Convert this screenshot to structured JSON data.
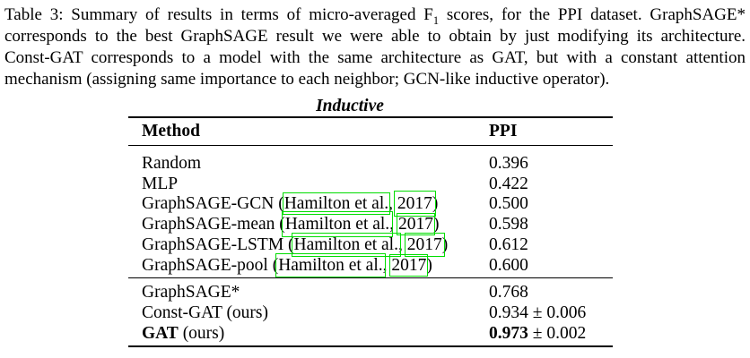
{
  "colors": {
    "citation_box": "#00dd00",
    "text": "#000000",
    "rule": "#000000"
  },
  "caption": {
    "lines": [
      {
        "pre": "Table 3: Summary of results in terms of micro-averaged F",
        "sub": "1",
        "post": " scores, for the PPI dataset. GraphSAGE*"
      },
      {
        "text": "corresponds to the best GraphSAGE result we were able to obtain by just modifying its architecture."
      },
      {
        "text": "Const-GAT corresponds to a model with the same architecture as GAT, but with a constant attention"
      },
      {
        "text": "mechanism (assigning same importance to each neighbor; GCN-like inductive operator)."
      }
    ]
  },
  "table": {
    "group_title": "Inductive",
    "columns": {
      "method": "Method",
      "ppi": "PPI"
    },
    "rows_top": [
      {
        "method": "Random",
        "value": "0.396"
      },
      {
        "method": "MLP",
        "value": "0.422"
      },
      {
        "prefix": "GraphSAGE-GCN (",
        "cite_name": "Hamilton et al.",
        "cite_sep": ", ",
        "cite_year": "2017",
        "suffix": ")",
        "value": "0.500"
      },
      {
        "prefix": "GraphSAGE-mean (",
        "cite_name": "Hamilton et al.",
        "cite_sep": ", ",
        "cite_year": "2017",
        "suffix": ")",
        "value": "0.598"
      },
      {
        "prefix": "GraphSAGE-LSTM (",
        "cite_name": "Hamilton et al.",
        "cite_sep": ", ",
        "cite_year": "2017",
        "suffix": ")",
        "value": "0.612"
      },
      {
        "prefix": "GraphSAGE-pool (",
        "cite_name": "Hamilton et al.",
        "cite_sep": ", ",
        "cite_year": "2017",
        "suffix": ")",
        "value": "0.600"
      }
    ],
    "rows_bottom": [
      {
        "method": "GraphSAGE*",
        "value": "0.768"
      },
      {
        "method": "Const-GAT (ours)",
        "value": "0.934 ± 0.006"
      },
      {
        "method_bold": "GAT",
        "method_rest": " (ours)",
        "value_bold": "0.973",
        "value_rest": " ± 0.002"
      }
    ]
  }
}
